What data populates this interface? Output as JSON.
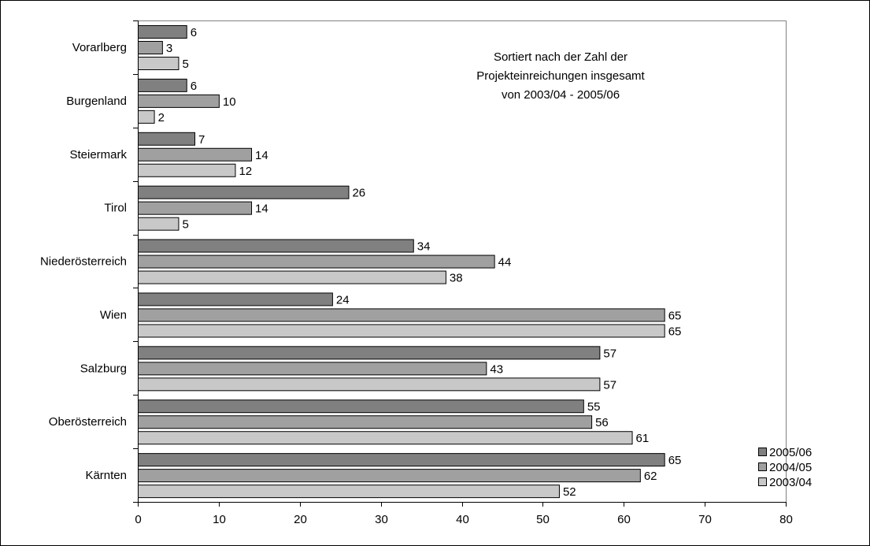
{
  "chart_data": {
    "type": "bar",
    "orientation": "horizontal",
    "categories": [
      "Vorarlberg",
      "Burgenland",
      "Steiermark",
      "Tirol",
      "Niederösterreich",
      "Wien",
      "Salzburg",
      "Oberösterreich",
      "Kärnten"
    ],
    "series": [
      {
        "name": "2005/06",
        "color": "#808080",
        "values": [
          6,
          6,
          7,
          26,
          34,
          24,
          57,
          55,
          65
        ]
      },
      {
        "name": "2004/05",
        "color": "#a0a0a0",
        "values": [
          3,
          10,
          14,
          14,
          44,
          65,
          43,
          56,
          62
        ]
      },
      {
        "name": "2003/04",
        "color": "#c8c8c8",
        "values": [
          5,
          2,
          12,
          5,
          38,
          65,
          57,
          61,
          52
        ]
      }
    ],
    "xlim": [
      0,
      80
    ],
    "xticks": [
      0,
      10,
      20,
      30,
      40,
      50,
      60,
      70,
      80
    ],
    "grid": false,
    "legend_position": "bottom-right",
    "annotation": [
      "Sortiert nach der Zahl der",
      "Projekteinreichungen insgesamt",
      "von 2003/04 - 2005/06"
    ]
  }
}
